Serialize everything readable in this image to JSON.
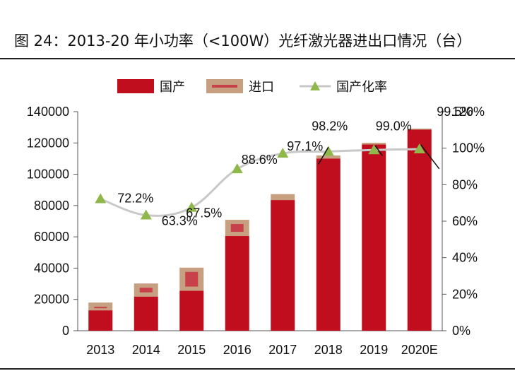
{
  "figure": {
    "title": "图 24：2013-20 年小功率（<100W）光纤激光器进出口情况（台）"
  },
  "chart_data": {
    "type": "bar",
    "categories": [
      "2013",
      "2014",
      "2015",
      "2016",
      "2017",
      "2018",
      "2019",
      "2020E"
    ],
    "series": [
      {
        "name": "国产",
        "kind": "bar",
        "axis": "left",
        "color": "#c00e1f",
        "values": [
          13000,
          21800,
          25500,
          60500,
          83500,
          110000,
          119000,
          128500
        ]
      },
      {
        "name": "进口",
        "kind": "bar",
        "axis": "left",
        "color": "#c6a080",
        "values": [
          5000,
          8400,
          14800,
          10400,
          3800,
          2000,
          1100,
          700
        ]
      },
      {
        "name": "国产化率",
        "kind": "line",
        "axis": "right",
        "color": "#8fb84a",
        "line_color": "#c8c8c8",
        "values": [
          72.2,
          63.3,
          67.5,
          88.6,
          97.1,
          98.2,
          99.0,
          99.5
        ],
        "labels": [
          "72.2%",
          "63.3%",
          "67.5%",
          "88.6%",
          "97.1%",
          "98.2%",
          "99.0%",
          "99.5%"
        ]
      }
    ],
    "ylim_left": [
      0,
      140000
    ],
    "yticks_left": [
      "0",
      "20000",
      "40000",
      "60000",
      "80000",
      "100000",
      "120000",
      "140000"
    ],
    "ylim_right": [
      0,
      120
    ],
    "yticks_right": [
      "0%",
      "20%",
      "40%",
      "60%",
      "80%",
      "100%",
      "120%"
    ],
    "legend_position": "top",
    "grid": false
  }
}
